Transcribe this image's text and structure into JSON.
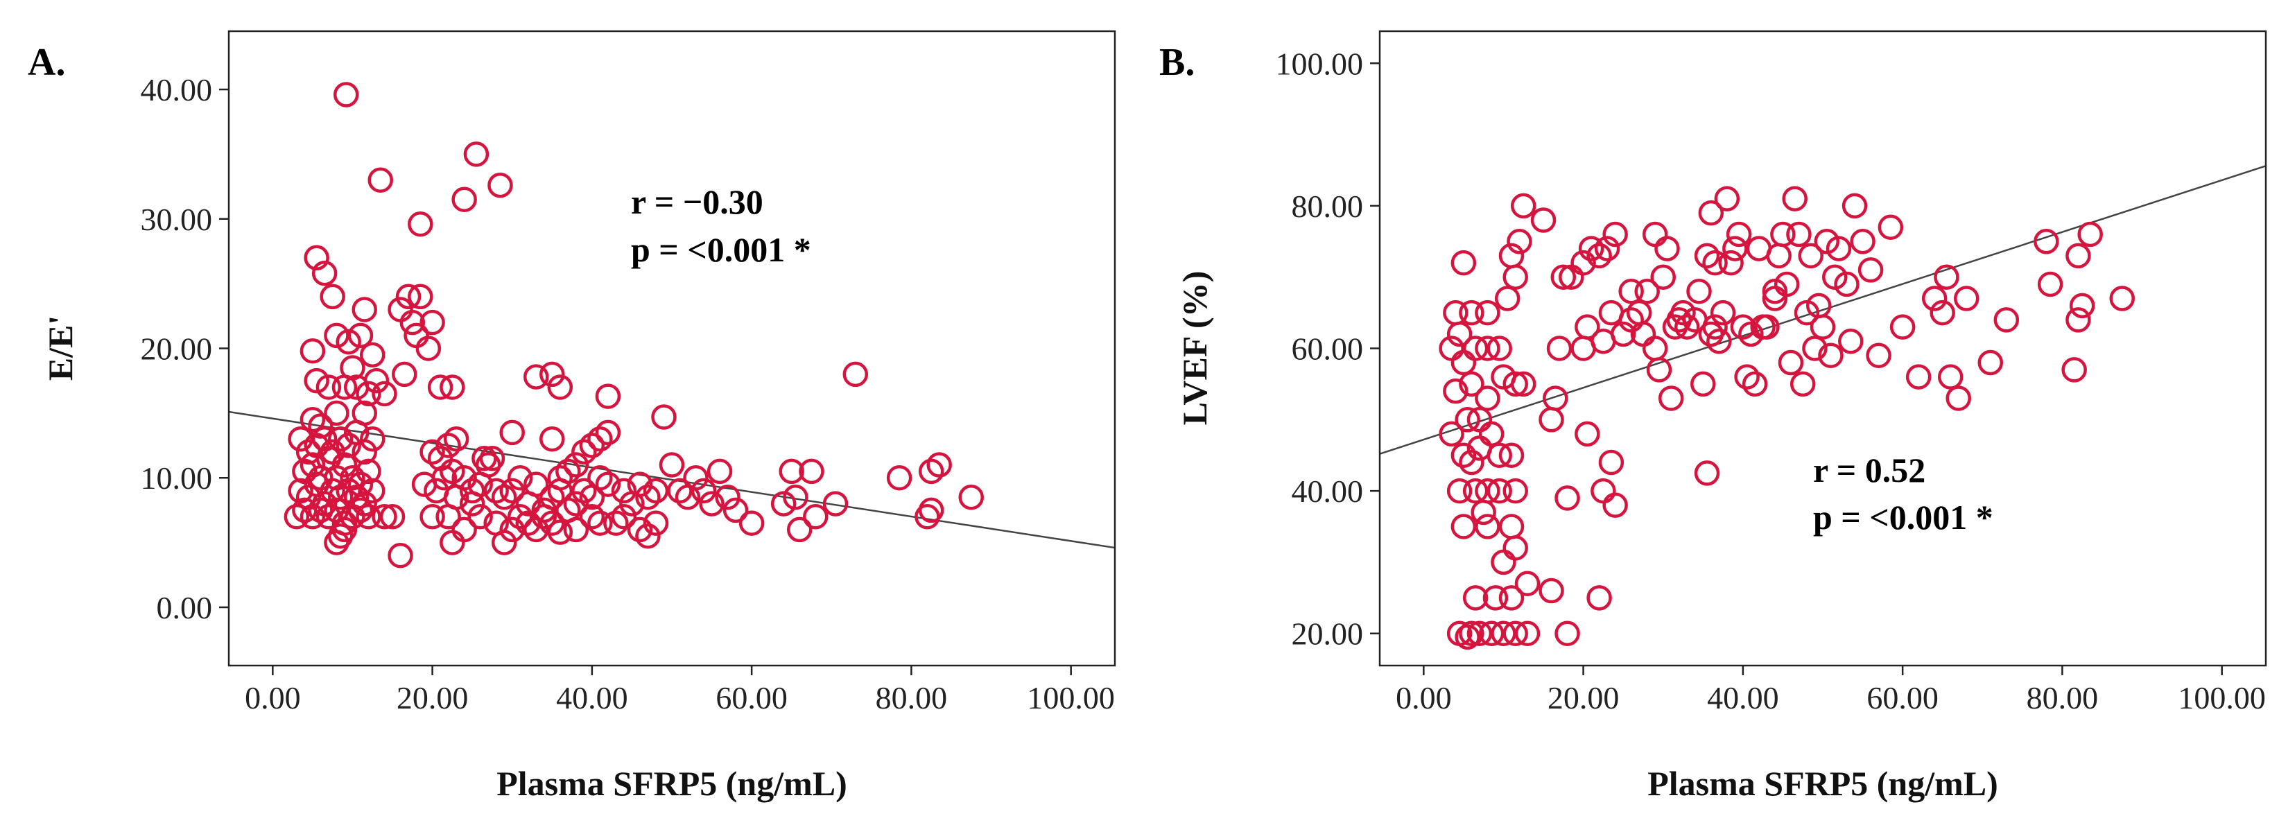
{
  "chart_data": [
    {
      "type": "scatter",
      "panel_label": "A.",
      "xlabel": "Plasma SFRP5 (ng/mL)",
      "ylabel": "E/E'",
      "xlim": [
        -5.5,
        105.5
      ],
      "ylim": [
        -4.5,
        44.5
      ],
      "xticks": [
        0,
        20,
        40,
        60,
        80,
        100
      ],
      "xtick_labels": [
        "0.00",
        "20.00",
        "40.00",
        "60.00",
        "80.00",
        "100.00"
      ],
      "yticks": [
        0,
        10,
        20,
        30,
        40
      ],
      "ytick_labels": [
        "0.00",
        "10.00",
        "20.00",
        "30.00",
        "40.00"
      ],
      "annotations": [
        "r = −0.30",
        "p = <0.001 *"
      ],
      "fit_line": {
        "x": [
          -5.5,
          105.5
        ],
        "y": [
          15.1,
          4.6
        ]
      },
      "points": [
        [
          9.2,
          39.6
        ],
        [
          13.5,
          33.0
        ],
        [
          24.0,
          31.5
        ],
        [
          25.5,
          35.0
        ],
        [
          28.5,
          32.6
        ],
        [
          18.5,
          29.6
        ],
        [
          5.5,
          27.0
        ],
        [
          6.5,
          25.8
        ],
        [
          7.5,
          24.0
        ],
        [
          17.0,
          24.0
        ],
        [
          18.5,
          24.0
        ],
        [
          11.5,
          23.0
        ],
        [
          16.0,
          23.0
        ],
        [
          17.5,
          22.0
        ],
        [
          20.0,
          22.0
        ],
        [
          18.0,
          21.0
        ],
        [
          19.5,
          20.0
        ],
        [
          5.0,
          19.8
        ],
        [
          8.0,
          21.0
        ],
        [
          9.5,
          20.5
        ],
        [
          11.0,
          21.0
        ],
        [
          12.5,
          19.5
        ],
        [
          10.0,
          18.5
        ],
        [
          13.0,
          17.5
        ],
        [
          5.5,
          17.5
        ],
        [
          7.0,
          17.0
        ],
        [
          16.5,
          18.0
        ],
        [
          22.5,
          17.0
        ],
        [
          21.0,
          17.0
        ],
        [
          33.0,
          17.8
        ],
        [
          35.0,
          18.0
        ],
        [
          36.0,
          17.0
        ],
        [
          42.0,
          16.3
        ],
        [
          73.0,
          18.0
        ],
        [
          12.0,
          16.5
        ],
        [
          14.0,
          16.5
        ],
        [
          9.0,
          17.0
        ],
        [
          10.5,
          17.0
        ],
        [
          11.5,
          15.0
        ],
        [
          8.0,
          15.0
        ],
        [
          5.0,
          14.5
        ],
        [
          6.0,
          14.0
        ],
        [
          3.5,
          13.0
        ],
        [
          4.5,
          12.0
        ],
        [
          5.5,
          12.5
        ],
        [
          6.5,
          13.0
        ],
        [
          7.5,
          12.0
        ],
        [
          8.5,
          13.0
        ],
        [
          9.5,
          12.5
        ],
        [
          10.5,
          13.5
        ],
        [
          11.5,
          12.0
        ],
        [
          12.5,
          13.0
        ],
        [
          4.0,
          10.5
        ],
        [
          5.0,
          11.0
        ],
        [
          6.0,
          10.0
        ],
        [
          7.0,
          11.5
        ],
        [
          8.0,
          10.0
        ],
        [
          9.0,
          11.0
        ],
        [
          10.0,
          10.0
        ],
        [
          11.0,
          9.5
        ],
        [
          12.0,
          10.5
        ],
        [
          3.5,
          9.0
        ],
        [
          4.5,
          8.5
        ],
        [
          5.5,
          9.5
        ],
        [
          6.5,
          8.0
        ],
        [
          7.5,
          9.0
        ],
        [
          8.5,
          8.5
        ],
        [
          9.5,
          9.0
        ],
        [
          10.5,
          8.5
        ],
        [
          11.5,
          8.0
        ],
        [
          12.5,
          9.0
        ],
        [
          4.0,
          7.5
        ],
        [
          5.0,
          7.0
        ],
        [
          6.0,
          7.5
        ],
        [
          7.0,
          7.0
        ],
        [
          8.0,
          7.5
        ],
        [
          9.0,
          6.5
        ],
        [
          10.0,
          7.0
        ],
        [
          3.0,
          7.0
        ],
        [
          11.0,
          7.5
        ],
        [
          12.0,
          7.0
        ],
        [
          14.0,
          7.0
        ],
        [
          15.0,
          7.0
        ],
        [
          8.0,
          5.0
        ],
        [
          8.5,
          5.5
        ],
        [
          9.0,
          6.0
        ],
        [
          16.0,
          4.0
        ],
        [
          20.0,
          12.0
        ],
        [
          21.0,
          11.5
        ],
        [
          22.0,
          12.5
        ],
        [
          23.0,
          13.0
        ],
        [
          19.0,
          9.5
        ],
        [
          20.5,
          9.0
        ],
        [
          21.5,
          10.0
        ],
        [
          22.5,
          10.5
        ],
        [
          24.0,
          10.0
        ],
        [
          25.0,
          9.0
        ],
        [
          26.0,
          9.5
        ],
        [
          27.0,
          11.0
        ],
        [
          28.0,
          9.0
        ],
        [
          29.0,
          8.5
        ],
        [
          30.0,
          9.0
        ],
        [
          31.0,
          10.0
        ],
        [
          32.0,
          8.0
        ],
        [
          33.0,
          9.5
        ],
        [
          34.0,
          7.5
        ],
        [
          35.0,
          8.5
        ],
        [
          36.0,
          9.0
        ],
        [
          37.0,
          10.5
        ],
        [
          38.0,
          8.0
        ],
        [
          39.0,
          9.0
        ],
        [
          40.0,
          8.5
        ],
        [
          41.0,
          10.0
        ],
        [
          42.0,
          9.5
        ],
        [
          30.0,
          13.5
        ],
        [
          35.0,
          13.0
        ],
        [
          38.0,
          11.0
        ],
        [
          40.0,
          12.5
        ],
        [
          42.0,
          13.5
        ],
        [
          41.0,
          13.0
        ],
        [
          36.0,
          10.0
        ],
        [
          44.0,
          9.0
        ],
        [
          45.0,
          8.0
        ],
        [
          46.0,
          9.5
        ],
        [
          47.0,
          8.5
        ],
        [
          48.0,
          9.0
        ],
        [
          49.0,
          14.7
        ],
        [
          50.0,
          11.0
        ],
        [
          51.0,
          9.0
        ],
        [
          52.0,
          8.5
        ],
        [
          53.0,
          10.0
        ],
        [
          54.0,
          9.0
        ],
        [
          55.0,
          8.0
        ],
        [
          56.0,
          10.5
        ],
        [
          57.0,
          8.5
        ],
        [
          58.0,
          7.5
        ],
        [
          60.0,
          6.5
        ],
        [
          64.0,
          8.0
        ],
        [
          65.0,
          10.5
        ],
        [
          65.5,
          8.5
        ],
        [
          66.0,
          6.0
        ],
        [
          67.5,
          10.5
        ],
        [
          68.0,
          7.0
        ],
        [
          70.5,
          8.0
        ],
        [
          78.5,
          10.0
        ],
        [
          82.0,
          7.0
        ],
        [
          82.5,
          7.5
        ],
        [
          82.5,
          10.5
        ],
        [
          83.5,
          11.0
        ],
        [
          87.5,
          8.5
        ],
        [
          20.0,
          7.0
        ],
        [
          22.0,
          7.0
        ],
        [
          22.5,
          5.0
        ],
        [
          24.0,
          6.0
        ],
        [
          25.0,
          8.0
        ],
        [
          26.0,
          7.0
        ],
        [
          28.0,
          6.5
        ],
        [
          29.0,
          5.0
        ],
        [
          30.0,
          6.0
        ],
        [
          31.0,
          7.0
        ],
        [
          32.0,
          6.5
        ],
        [
          33.0,
          6.0
        ],
        [
          34.0,
          7.0
        ],
        [
          35.0,
          6.5
        ],
        [
          36.0,
          5.8
        ],
        [
          37.0,
          7.5
        ],
        [
          38.0,
          6.0
        ],
        [
          40.0,
          7.0
        ],
        [
          41.0,
          6.5
        ],
        [
          43.0,
          6.5
        ],
        [
          44.0,
          7.0
        ],
        [
          46.0,
          6.0
        ],
        [
          47.0,
          5.5
        ],
        [
          48.0,
          6.5
        ],
        [
          23.0,
          8.5
        ],
        [
          26.5,
          11.5
        ],
        [
          27.5,
          11.5
        ],
        [
          39.0,
          12.0
        ]
      ]
    },
    {
      "type": "scatter",
      "panel_label": "B.",
      "xlabel": "Plasma SFRP5 (ng/mL)",
      "ylabel": "LVEF (%)",
      "xlim": [
        -5.5,
        105.5
      ],
      "ylim": [
        15.5,
        104.5
      ],
      "xticks": [
        0,
        20,
        40,
        60,
        80,
        100
      ],
      "xtick_labels": [
        "0.00",
        "20.00",
        "40.00",
        "60.00",
        "80.00",
        "100.00"
      ],
      "yticks": [
        20,
        40,
        60,
        80,
        100
      ],
      "ytick_labels": [
        "20.00",
        "40.00",
        "60.00",
        "80.00",
        "100.00"
      ],
      "annotations": [
        "r = 0.52",
        "p = <0.001 *"
      ],
      "fit_line": {
        "x": [
          -5.5,
          105.5
        ],
        "y": [
          45.2,
          85.6
        ]
      },
      "points": [
        [
          4.5,
          20.0
        ],
        [
          5.5,
          19.5
        ],
        [
          6.0,
          20.0
        ],
        [
          7.0,
          20.0
        ],
        [
          8.5,
          20.0
        ],
        [
          10.0,
          20.0
        ],
        [
          11.5,
          20.0
        ],
        [
          13.0,
          20.0
        ],
        [
          18.0,
          20.0
        ],
        [
          6.5,
          25.0
        ],
        [
          9.0,
          25.0
        ],
        [
          11.0,
          25.0
        ],
        [
          16.0,
          26.0
        ],
        [
          22.0,
          25.0
        ],
        [
          13.0,
          27.0
        ],
        [
          10.0,
          30.0
        ],
        [
          11.5,
          32.0
        ],
        [
          8.0,
          35.0
        ],
        [
          5.0,
          35.0
        ],
        [
          7.5,
          37.0
        ],
        [
          11.0,
          35.0
        ],
        [
          4.5,
          40.0
        ],
        [
          6.5,
          40.0
        ],
        [
          8.0,
          40.0
        ],
        [
          9.5,
          40.0
        ],
        [
          11.5,
          40.0
        ],
        [
          18.0,
          39.0
        ],
        [
          22.5,
          40.0
        ],
        [
          24.0,
          38.0
        ],
        [
          23.5,
          44.0
        ],
        [
          35.5,
          42.5
        ],
        [
          5.0,
          45.0
        ],
        [
          6.0,
          44.0
        ],
        [
          7.0,
          46.0
        ],
        [
          9.5,
          45.0
        ],
        [
          11.0,
          45.0
        ],
        [
          3.5,
          48.0
        ],
        [
          5.5,
          50.0
        ],
        [
          7.0,
          50.0
        ],
        [
          8.5,
          48.0
        ],
        [
          16.0,
          50.0
        ],
        [
          16.5,
          53.0
        ],
        [
          20.5,
          48.0
        ],
        [
          4.0,
          54.0
        ],
        [
          6.0,
          55.0
        ],
        [
          8.0,
          53.0
        ],
        [
          10.0,
          56.0
        ],
        [
          11.5,
          55.0
        ],
        [
          12.5,
          55.0
        ],
        [
          5.0,
          58.0
        ],
        [
          6.5,
          60.0
        ],
        [
          8.0,
          60.0
        ],
        [
          9.5,
          60.0
        ],
        [
          3.5,
          60.0
        ],
        [
          4.5,
          62.0
        ],
        [
          17.0,
          60.0
        ],
        [
          20.0,
          60.0
        ],
        [
          20.5,
          63.0
        ],
        [
          22.5,
          61.0
        ],
        [
          23.5,
          65.0
        ],
        [
          4.0,
          65.0
        ],
        [
          6.0,
          65.0
        ],
        [
          8.0,
          65.0
        ],
        [
          10.5,
          67.0
        ],
        [
          11.5,
          70.0
        ],
        [
          5.0,
          72.0
        ],
        [
          11.0,
          73.0
        ],
        [
          12.0,
          75.0
        ],
        [
          12.5,
          80.0
        ],
        [
          15.0,
          78.0
        ],
        [
          17.5,
          70.0
        ],
        [
          18.5,
          70.0
        ],
        [
          20.0,
          72.0
        ],
        [
          21.0,
          74.0
        ],
        [
          22.0,
          73.0
        ],
        [
          23.0,
          74.0
        ],
        [
          24.0,
          76.0
        ],
        [
          25.0,
          62.0
        ],
        [
          26.0,
          64.0
        ],
        [
          27.0,
          65.0
        ],
        [
          28.0,
          68.0
        ],
        [
          29.0,
          76.0
        ],
        [
          30.0,
          70.0
        ],
        [
          29.0,
          60.0
        ],
        [
          29.5,
          57.0
        ],
        [
          30.5,
          74.0
        ],
        [
          31.0,
          53.0
        ],
        [
          32.0,
          64.0
        ],
        [
          33.0,
          63.0
        ],
        [
          34.0,
          64.0
        ],
        [
          34.5,
          68.0
        ],
        [
          35.0,
          55.0
        ],
        [
          35.5,
          73.0
        ],
        [
          36.0,
          79.0
        ],
        [
          36.5,
          72.0
        ],
        [
          37.0,
          61.0
        ],
        [
          37.5,
          65.0
        ],
        [
          38.0,
          81.0
        ],
        [
          39.0,
          74.0
        ],
        [
          39.5,
          76.0
        ],
        [
          40.0,
          63.0
        ],
        [
          40.5,
          56.0
        ],
        [
          41.0,
          62.0
        ],
        [
          41.5,
          55.0
        ],
        [
          42.0,
          74.0
        ],
        [
          43.0,
          63.0
        ],
        [
          44.0,
          67.0
        ],
        [
          44.5,
          73.0
        ],
        [
          45.0,
          76.0
        ],
        [
          45.5,
          69.0
        ],
        [
          46.0,
          58.0
        ],
        [
          46.5,
          81.0
        ],
        [
          47.0,
          76.0
        ],
        [
          47.5,
          55.0
        ],
        [
          48.0,
          65.0
        ],
        [
          48.5,
          73.0
        ],
        [
          49.0,
          60.0
        ],
        [
          49.5,
          66.0
        ],
        [
          50.0,
          63.0
        ],
        [
          50.5,
          75.0
        ],
        [
          51.0,
          59.0
        ],
        [
          51.5,
          70.0
        ],
        [
          52.0,
          74.0
        ],
        [
          53.0,
          69.0
        ],
        [
          53.5,
          61.0
        ],
        [
          54.0,
          80.0
        ],
        [
          55.0,
          75.0
        ],
        [
          56.0,
          71.0
        ],
        [
          57.0,
          59.0
        ],
        [
          58.5,
          77.0
        ],
        [
          60.0,
          63.0
        ],
        [
          62.0,
          56.0
        ],
        [
          64.0,
          67.0
        ],
        [
          65.0,
          65.0
        ],
        [
          65.5,
          70.0
        ],
        [
          66.0,
          56.0
        ],
        [
          67.0,
          53.0
        ],
        [
          68.0,
          67.0
        ],
        [
          71.0,
          58.0
        ],
        [
          73.0,
          64.0
        ],
        [
          78.0,
          75.0
        ],
        [
          78.5,
          69.0
        ],
        [
          81.5,
          57.0
        ],
        [
          82.0,
          64.0
        ],
        [
          82.0,
          73.0
        ],
        [
          82.5,
          66.0
        ],
        [
          83.5,
          76.0
        ],
        [
          87.5,
          67.0
        ],
        [
          32.5,
          65.0
        ],
        [
          36.0,
          62.0
        ],
        [
          38.5,
          72.0
        ],
        [
          42.5,
          63.0
        ],
        [
          44.0,
          68.0
        ],
        [
          27.5,
          62.0
        ],
        [
          31.5,
          63.0
        ],
        [
          26.0,
          68.0
        ],
        [
          36.5,
          63.0
        ]
      ]
    }
  ]
}
